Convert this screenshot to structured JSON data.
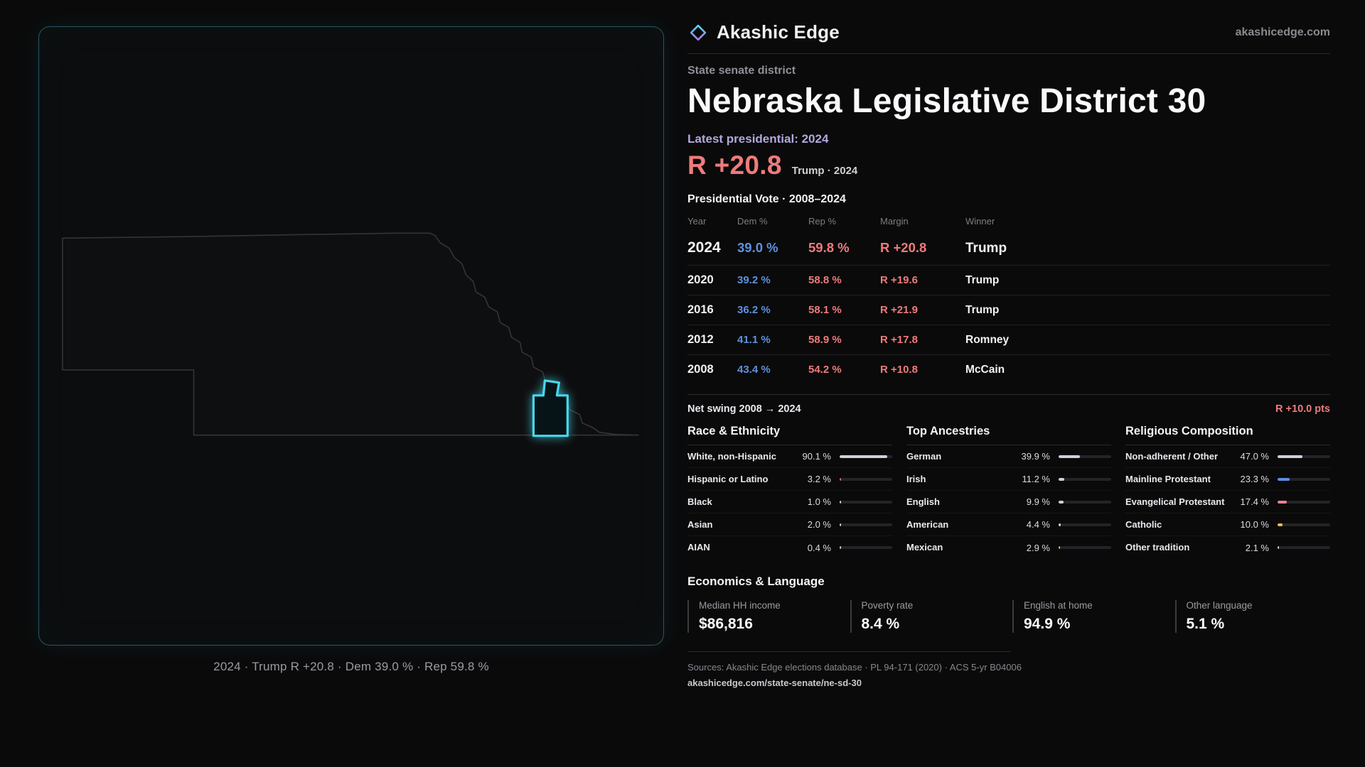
{
  "brand": {
    "name": "Akashic Edge",
    "domain": "akashicedge.com"
  },
  "header": {
    "kicker": "State senate district",
    "title": "Nebraska Legislative District 30",
    "latest_label": "Latest presidential: 2024",
    "headline_margin": "R +20.8",
    "headline_context": "Trump · 2024"
  },
  "map": {
    "caption": "2024 · Trump R +20.8 · Dem 39.0 % · Rep 59.8 %"
  },
  "vote_table": {
    "title": "Presidential Vote · 2008–2024",
    "columns": [
      "Year",
      "Dem %",
      "Rep %",
      "Margin",
      "Winner"
    ],
    "rows": [
      {
        "year": "2024",
        "dem": "39.0 %",
        "rep": "59.8 %",
        "margin": "R +20.8",
        "winner": "Trump"
      },
      {
        "year": "2020",
        "dem": "39.2 %",
        "rep": "58.8 %",
        "margin": "R +19.6",
        "winner": "Trump"
      },
      {
        "year": "2016",
        "dem": "36.2 %",
        "rep": "58.1 %",
        "margin": "R +21.9",
        "winner": "Trump"
      },
      {
        "year": "2012",
        "dem": "41.1 %",
        "rep": "58.9 %",
        "margin": "R +17.8",
        "winner": "Romney"
      },
      {
        "year": "2008",
        "dem": "43.4 %",
        "rep": "54.2 %",
        "margin": "R +10.8",
        "winner": "McCain"
      }
    ]
  },
  "net_swing": {
    "label": "Net swing 2008 → 2024",
    "value": "R +10.0 pts"
  },
  "demographics": {
    "race": {
      "title": "Race & Ethnicity",
      "items": [
        {
          "label": "White, non-Hispanic",
          "value": "90.1 %",
          "pct": 90.1,
          "color": "#cfcfdd"
        },
        {
          "label": "Hispanic or Latino",
          "value": "3.2 %",
          "pct": 3.2,
          "color": "#e06c55"
        },
        {
          "label": "Black",
          "value": "1.0 %",
          "pct": 1.0,
          "color": "#cfcfdd"
        },
        {
          "label": "Asian",
          "value": "2.0 %",
          "pct": 2.0,
          "color": "#cfcfdd"
        },
        {
          "label": "AIAN",
          "value": "0.4 %",
          "pct": 0.4,
          "color": "#cfcfdd"
        }
      ]
    },
    "ancestries": {
      "title": "Top Ancestries",
      "items": [
        {
          "label": "German",
          "value": "39.9 %",
          "pct": 39.9,
          "color": "#cfcfdd"
        },
        {
          "label": "Irish",
          "value": "11.2 %",
          "pct": 11.2,
          "color": "#cfcfdd"
        },
        {
          "label": "English",
          "value": "9.9 %",
          "pct": 9.9,
          "color": "#cfcfdd"
        },
        {
          "label": "American",
          "value": "4.4 %",
          "pct": 4.4,
          "color": "#cfcfdd"
        },
        {
          "label": "Mexican",
          "value": "2.9 %",
          "pct": 2.9,
          "color": "#e5c04a"
        }
      ]
    },
    "religion": {
      "title": "Religious Composition",
      "items": [
        {
          "label": "Non-adherent / Other",
          "value": "47.0 %",
          "pct": 47.0,
          "color": "#cfcfdd"
        },
        {
          "label": "Mainline Protestant",
          "value": "23.3 %",
          "pct": 23.3,
          "color": "#5d8fe0"
        },
        {
          "label": "Evangelical Protestant",
          "value": "17.4 %",
          "pct": 17.4,
          "color": "#ec8190"
        },
        {
          "label": "Catholic",
          "value": "10.0 %",
          "pct": 10.0,
          "color": "#e5c04a"
        },
        {
          "label": "Other tradition",
          "value": "2.1 %",
          "pct": 2.1,
          "color": "#cfcfdd"
        }
      ]
    }
  },
  "economics": {
    "title": "Economics & Language",
    "stats": [
      {
        "label": "Median HH income",
        "value": "$86,816"
      },
      {
        "label": "Poverty rate",
        "value": "8.4 %"
      },
      {
        "label": "English at home",
        "value": "94.9 %"
      },
      {
        "label": "Other language",
        "value": "5.1 %"
      }
    ]
  },
  "footer": {
    "sources": "Sources: Akashic Edge elections database · PL 94-171 (2020) · ACS 5-yr B04006",
    "permalink": "akashicedge.com/state-senate/ne-sd-30"
  },
  "colors": {
    "accent_cyan": "#49d7ec",
    "rep_red": "#ef7b7b",
    "dem_blue": "#5d92dd",
    "lavender": "#b4a7db"
  }
}
